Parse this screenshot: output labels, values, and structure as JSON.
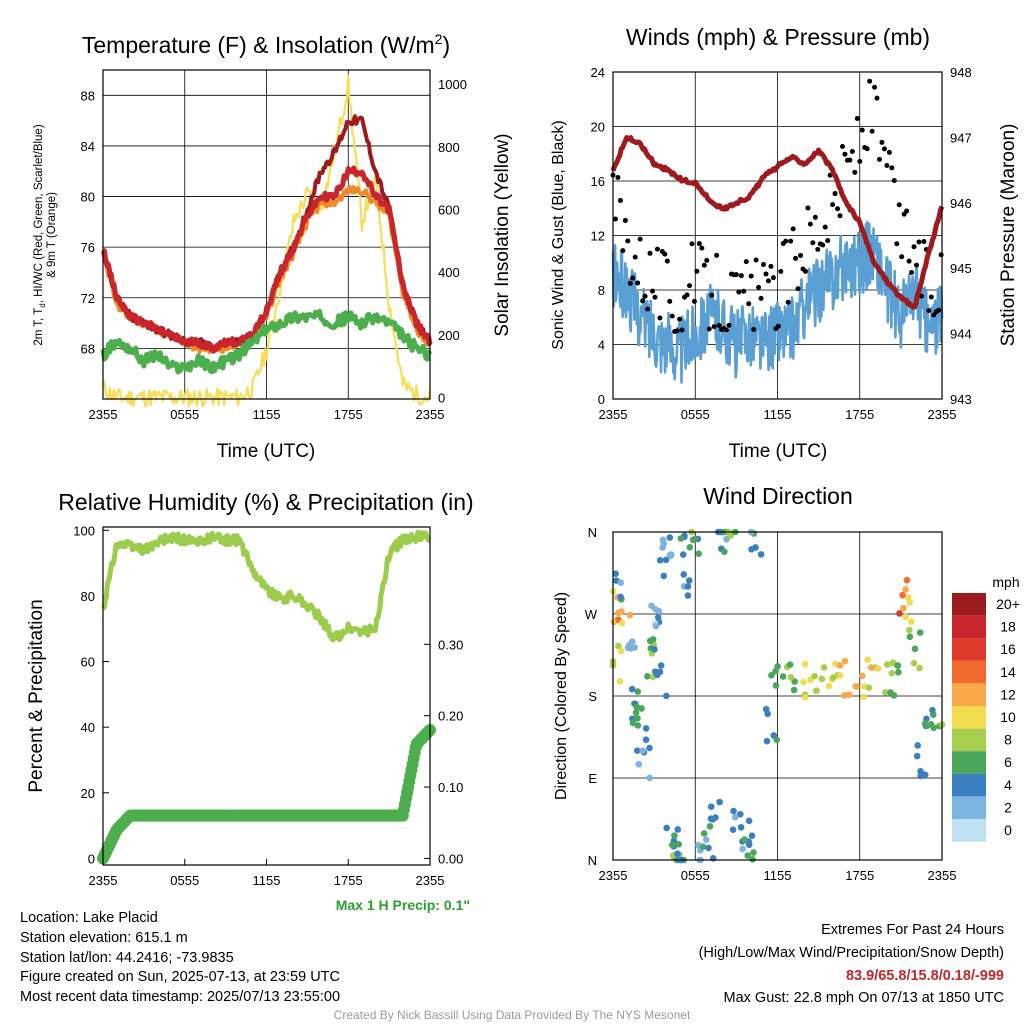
{
  "colors": {
    "temp_red": "#c8252c",
    "dewpoint_green": "#4cae4c",
    "hiwc_scarlet": "#9b1b1e",
    "temp9m_orange": "#f08a28",
    "insolation_yellow": "#f7dd58",
    "wind_blue": "#5a9fd4",
    "gust_black": "#000000",
    "pressure_maroon": "#a0191d",
    "rh_lightgreen": "#9ccc4c",
    "precip_green": "#4cae4c"
  },
  "time_ticks": [
    "2355",
    "0555",
    "1155",
    "1755",
    "2355"
  ],
  "panels": {
    "temp": {
      "title_main": "Temperature (F) & Insolation (W/m",
      "title_sup": "2",
      "title_close": ")",
      "xlabel": "Time (UTC)",
      "ylabel_left_line1": "2m T, T",
      "ylabel_left_sub": "d",
      "ylabel_left_line1_rest": ", HI/WC (Red, Green, Scarlet/Blue)",
      "ylabel_left_line2": "& 9m T (Orange)",
      "ylabel_right": "Solar Insolation (Yellow)"
    },
    "wind": {
      "title": "Winds (mph) & Pressure (mb)",
      "xlabel": "Time (UTC)",
      "ylabel_left": "Sonic Wind & Gust (Blue, Black)",
      "ylabel_right": "Station Pressure (Maroon)"
    },
    "rh": {
      "title": "Relative Humidity (%) & Precipitation (in)",
      "ylabel_left": "Percent & Precipitation",
      "max_precip_note": "Max 1 H Precip: 0.1\""
    },
    "dir": {
      "title": "Wind Direction",
      "ylabel_left": "Direction (Colored By Speed)",
      "colorbar_unit": "mph",
      "colorbar_labels": [
        "20+",
        "18",
        "16",
        "14",
        "12",
        "10",
        "8",
        "6",
        "4",
        "2",
        "0"
      ],
      "colorbar_colors": [
        "#9b1b1e",
        "#c8252c",
        "#dd3a2c",
        "#f26a2e",
        "#f9a84a",
        "#f2dc4f",
        "#a7cf4d",
        "#4aa65a",
        "#3a7fc0",
        "#7cb3df",
        "#bfe0f3"
      ]
    }
  },
  "info": {
    "location": "Location: Lake Placid",
    "elevation": "Station elevation: 615.1 m",
    "latlon": "Station lat/lon: 44.2416; -73.9835",
    "created": "Figure created on Sun, 2025-07-13, at 23:59 UTC",
    "recent": "Most recent data timestamp: 2025/07/13 23:55:00",
    "extremes_title": "Extremes For Past 24 Hours",
    "extremes_sub": "(High/Low/Max Wind/Precipitation/Snow Depth)",
    "extremes_values": "83.9/65.8/15.8/0.18/-999",
    "max_gust": "Max Gust: 22.8 mph On 07/13 at 1850 UTC",
    "credit": "Created By Nick Bassill Using Data Provided By The NYS Mesonet"
  },
  "chart_data": [
    {
      "type": "line",
      "title": "Temperature (F) & Insolation (W/m2)",
      "xlabel": "Time (UTC)",
      "ylabel": "2m T, Td, HI/WC (Red, Green, Scarlet/Blue) & 9m T (Orange)",
      "y2label": "Solar Insolation (Yellow)",
      "x_hours": [
        0,
        1,
        2,
        3,
        4,
        5,
        6,
        7,
        8,
        9,
        10,
        11,
        12,
        13,
        14,
        15,
        16,
        17,
        18,
        19,
        20,
        21,
        22,
        23,
        24
      ],
      "x_tick_labels": [
        "2355",
        "0555",
        "1155",
        "1755",
        "2355"
      ],
      "ylim": [
        64,
        90
      ],
      "y_ticks": [
        68,
        72,
        76,
        80,
        84,
        88
      ],
      "y2lim": [
        -5,
        1045
      ],
      "y2_ticks": [
        0,
        200,
        400,
        600,
        800,
        1000
      ],
      "series": [
        {
          "name": "2m T",
          "color": "#c8252c",
          "axis": "left",
          "values": [
            76,
            72,
            70.5,
            70,
            69.5,
            69,
            68.5,
            68.5,
            68,
            68.5,
            68.5,
            69,
            71,
            74,
            76,
            78.5,
            80,
            80,
            82,
            82,
            80,
            79,
            73,
            70,
            68.5
          ]
        },
        {
          "name": "HI/WC",
          "color": "#9b1b1e",
          "axis": "left",
          "values": [
            76,
            72,
            70.5,
            70,
            69.5,
            69,
            68.5,
            68.5,
            68,
            68.5,
            68.5,
            69,
            71,
            74,
            76,
            79,
            82,
            83.5,
            86,
            86,
            82,
            79,
            73,
            70,
            68.5
          ]
        },
        {
          "name": "9m T",
          "color": "#f08a28",
          "axis": "left",
          "values": [
            75.5,
            71.5,
            70.5,
            70,
            69.5,
            69,
            68.5,
            68,
            68,
            68,
            68.5,
            69,
            70.5,
            73.5,
            75.5,
            78,
            79.5,
            79.5,
            80.5,
            80.5,
            79.5,
            78.5,
            72.5,
            69.5,
            68
          ]
        },
        {
          "name": "Td",
          "color": "#4cae4c",
          "axis": "left",
          "values": [
            67.5,
            68.5,
            68,
            67,
            67.5,
            66.5,
            66.5,
            67,
            66.5,
            67,
            67.5,
            68.5,
            69.5,
            70,
            70.5,
            70.5,
            70.5,
            70,
            70.5,
            70,
            70.5,
            70,
            69,
            68,
            67.5
          ]
        },
        {
          "name": "Insolation",
          "color": "#f7dd58",
          "axis": "right",
          "values": [
            30,
            0,
            0,
            0,
            0,
            0,
            0,
            0,
            0,
            0,
            0,
            30,
            150,
            350,
            560,
            650,
            600,
            780,
            1000,
            560,
            700,
            300,
            40,
            10,
            0
          ]
        }
      ]
    },
    {
      "type": "line",
      "title": "Winds (mph) & Pressure (mb)",
      "xlabel": "Time (UTC)",
      "ylabel": "Sonic Wind & Gust (Blue, Black)",
      "y2label": "Station Pressure (Maroon)",
      "x_hours": [
        0,
        1,
        2,
        3,
        4,
        5,
        6,
        7,
        8,
        9,
        10,
        11,
        12,
        13,
        14,
        15,
        16,
        17,
        18,
        19,
        20,
        21,
        22,
        23,
        24
      ],
      "x_tick_labels": [
        "2355",
        "0555",
        "1155",
        "1755",
        "2355"
      ],
      "ylim": [
        0,
        24
      ],
      "y_ticks": [
        0,
        4,
        8,
        12,
        16,
        20,
        24
      ],
      "y2lim": [
        943,
        948
      ],
      "y2_ticks": [
        943,
        944,
        945,
        946,
        947,
        948
      ],
      "series": [
        {
          "name": "Sonic Wind",
          "color": "#5a9fd4",
          "axis": "left",
          "values": [
            9,
            8,
            6,
            5,
            4,
            3.5,
            5,
            6,
            5.5,
            4,
            5,
            4,
            5,
            5,
            7,
            8,
            9,
            10,
            10,
            11,
            8,
            6,
            8,
            5,
            6
          ]
        },
        {
          "name": "Gust",
          "color": "#000000",
          "axis": "left",
          "values": [
            15,
            12,
            10,
            9,
            8,
            7,
            9,
            8,
            8,
            7,
            8,
            7,
            8,
            10,
            12,
            13,
            14,
            17,
            19,
            21,
            16,
            12,
            11,
            8,
            9
          ]
        },
        {
          "name": "Station Pressure",
          "color": "#a0191d",
          "axis": "right",
          "values": [
            946.5,
            947,
            946.9,
            946.6,
            946.5,
            946.35,
            946.3,
            946.05,
            945.9,
            946.0,
            946.1,
            946.4,
            946.55,
            946.7,
            946.6,
            946.8,
            946.5,
            946,
            945.7,
            945.1,
            944.8,
            944.55,
            944.4,
            945.2,
            945.95
          ]
        }
      ]
    },
    {
      "type": "line",
      "title": "Relative Humidity (%) & Precipitation (in)",
      "ylabel": "Percent & Precipitation",
      "x_hours": [
        0,
        1,
        2,
        3,
        4,
        5,
        6,
        7,
        8,
        9,
        10,
        11,
        12,
        13,
        14,
        15,
        16,
        17,
        18,
        19,
        20,
        21,
        22,
        23,
        24
      ],
      "x_tick_labels": [
        "2355",
        "0555",
        "1155",
        "1755",
        "2355"
      ],
      "ylim": [
        -2,
        101
      ],
      "y_ticks": [
        0,
        20,
        40,
        60,
        80,
        100
      ],
      "y2_ticks": [
        0.0,
        0.1,
        0.2,
        0.3
      ],
      "y2_tick_labels": [
        "0.00",
        "0.10",
        "0.20",
        "0.30"
      ],
      "series": [
        {
          "name": "RH",
          "color": "#9ccc4c",
          "axis": "left",
          "values": [
            76,
            96,
            95,
            94,
            96,
            98,
            97,
            96,
            98,
            97,
            97,
            88,
            82,
            79,
            80,
            77,
            73,
            67,
            70,
            69,
            70,
            93,
            97,
            98,
            98
          ]
        },
        {
          "name": "Precipitation",
          "color": "#4cae4c",
          "axis": "right",
          "values": [
            0,
            0.04,
            0.06,
            0.06,
            0.06,
            0.06,
            0.06,
            0.06,
            0.06,
            0.06,
            0.06,
            0.06,
            0.06,
            0.06,
            0.06,
            0.06,
            0.06,
            0.06,
            0.06,
            0.06,
            0.06,
            0.06,
            0.06,
            0.16,
            0.18
          ]
        }
      ]
    },
    {
      "type": "scatter",
      "title": "Wind Direction",
      "ylabel": "Direction (Colored By Speed)",
      "x_tick_labels": [
        "2355",
        "0555",
        "1155",
        "1755",
        "2355"
      ],
      "y_tick_labels": [
        "N",
        "E",
        "S",
        "W",
        "N"
      ],
      "ylim_deg": [
        0,
        360
      ],
      "colorbar": "mph, 0 to 20+",
      "points": [
        {
          "hour": 0.2,
          "dir": 215,
          "speed": 9
        },
        {
          "hour": 0.3,
          "dir": 280,
          "speed": 11
        },
        {
          "hour": 0.5,
          "dir": 300,
          "speed": 4
        },
        {
          "hour": 0.8,
          "dir": 265,
          "speed": 12
        },
        {
          "hour": 1.2,
          "dir": 250,
          "speed": 1
        },
        {
          "hour": 1.5,
          "dir": 175,
          "speed": 5
        },
        {
          "hour": 1.8,
          "dir": 160,
          "speed": 6
        },
        {
          "hour": 2.0,
          "dir": 140,
          "speed": 4
        },
        {
          "hour": 2.3,
          "dir": 110,
          "speed": 3
        },
        {
          "hour": 2.6,
          "dir": 220,
          "speed": 7
        },
        {
          "hour": 3.0,
          "dir": 250,
          "speed": 4
        },
        {
          "hour": 3.2,
          "dir": 260,
          "speed": 1
        },
        {
          "hour": 3.5,
          "dir": 200,
          "speed": 4
        },
        {
          "hour": 3.8,
          "dir": 330,
          "speed": 2
        },
        {
          "hour": 4.0,
          "dir": 355,
          "speed": 3
        },
        {
          "hour": 4.3,
          "dir": 20,
          "speed": 4
        },
        {
          "hour": 4.6,
          "dir": 10,
          "speed": 6
        },
        {
          "hour": 4.9,
          "dir": 0,
          "speed": 5
        },
        {
          "hour": 5.2,
          "dir": 340,
          "speed": 5
        },
        {
          "hour": 5.5,
          "dir": 310,
          "speed": 4
        },
        {
          "hour": 6.0,
          "dir": 350,
          "speed": 6
        },
        {
          "hour": 6.5,
          "dir": 5,
          "speed": 3
        },
        {
          "hour": 7.0,
          "dir": 20,
          "speed": 5
        },
        {
          "hour": 7.5,
          "dir": 50,
          "speed": 4
        },
        {
          "hour": 8.0,
          "dir": 345,
          "speed": 3
        },
        {
          "hour": 8.5,
          "dir": 352,
          "speed": 7
        },
        {
          "hour": 9.0,
          "dir": 40,
          "speed": 3
        },
        {
          "hour": 9.5,
          "dir": 30,
          "speed": 4
        },
        {
          "hour": 10.0,
          "dir": 10,
          "speed": 6
        },
        {
          "hour": 10.5,
          "dir": 355,
          "speed": 4
        },
        {
          "hour": 11.5,
          "dir": 150,
          "speed": 5
        },
        {
          "hour": 12.0,
          "dir": 200,
          "speed": 6
        },
        {
          "hour": 13.0,
          "dir": 205,
          "speed": 7
        },
        {
          "hour": 14.0,
          "dir": 198,
          "speed": 9
        },
        {
          "hour": 15.0,
          "dir": 202,
          "speed": 8
        },
        {
          "hour": 16.0,
          "dir": 196,
          "speed": 10
        },
        {
          "hour": 17.0,
          "dir": 200,
          "speed": 12
        },
        {
          "hour": 18.0,
          "dir": 195,
          "speed": 11
        },
        {
          "hour": 19.0,
          "dir": 203,
          "speed": 10
        },
        {
          "hour": 20.0,
          "dir": 199,
          "speed": 8
        },
        {
          "hour": 20.5,
          "dir": 200,
          "speed": 7
        },
        {
          "hour": 21.3,
          "dir": 290,
          "speed": 14
        },
        {
          "hour": 21.6,
          "dir": 270,
          "speed": 9
        },
        {
          "hour": 22.0,
          "dir": 230,
          "speed": 6
        },
        {
          "hour": 22.5,
          "dir": 110,
          "speed": 4
        },
        {
          "hour": 23.0,
          "dir": 140,
          "speed": 5
        },
        {
          "hour": 23.6,
          "dir": 160,
          "speed": 6
        }
      ]
    }
  ]
}
